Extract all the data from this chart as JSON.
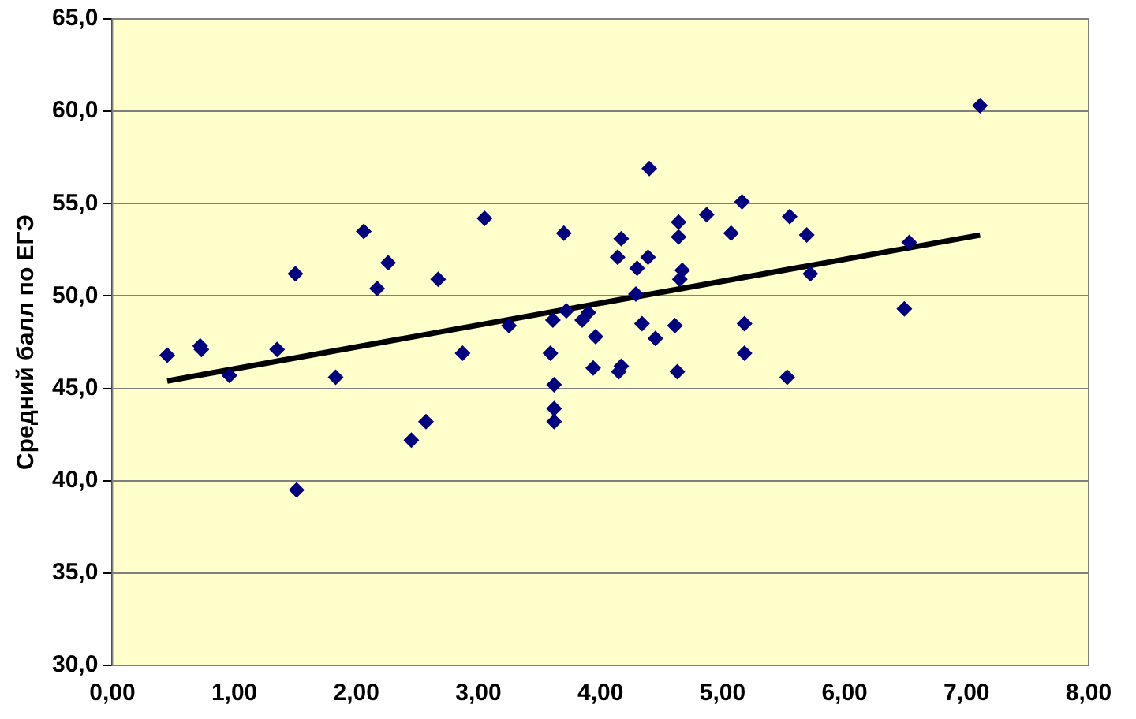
{
  "chart_data": {
    "type": "scatter",
    "ylabel": "Средний балл по ЕГЭ",
    "marker": "diamond",
    "grid": "y",
    "xlim": [
      0,
      8
    ],
    "xticks": [
      {
        "value": 0,
        "label": "0,00"
      },
      {
        "value": 1,
        "label": "1,00"
      },
      {
        "value": 2,
        "label": "2,00"
      },
      {
        "value": 3,
        "label": "3,00"
      },
      {
        "value": 4,
        "label": "4,00"
      },
      {
        "value": 5,
        "label": "5,00"
      },
      {
        "value": 6,
        "label": "6,00"
      },
      {
        "value": 7,
        "label": "7,00"
      },
      {
        "value": 8,
        "label": "8,00"
      }
    ],
    "ylim": [
      30,
      65
    ],
    "yticks": [
      {
        "value": 30,
        "label": "30,0"
      },
      {
        "value": 35,
        "label": "35,0"
      },
      {
        "value": 40,
        "label": "40,0"
      },
      {
        "value": 45,
        "label": "45,0"
      },
      {
        "value": 50,
        "label": "50,0"
      },
      {
        "value": 55,
        "label": "55,0"
      },
      {
        "value": 60,
        "label": "60,0"
      },
      {
        "value": 65,
        "label": "65,0"
      }
    ],
    "series": [
      {
        "color": "#000080",
        "x": [
          0.45,
          0.72,
          0.73,
          0.96,
          1.35,
          1.5,
          1.51,
          1.83,
          2.06,
          2.17,
          2.26,
          2.45,
          2.57,
          2.67,
          2.87,
          3.05,
          3.25,
          3.59,
          3.61,
          3.62,
          3.62,
          3.62,
          3.7,
          3.72,
          3.85,
          3.9,
          3.96,
          3.94,
          4.4,
          5.16,
          4.87,
          4.64,
          4.64,
          5.07,
          5.55,
          5.69,
          6.53,
          4.17,
          4.14,
          4.39,
          4.3,
          4.67,
          4.65,
          4.29,
          5.72,
          6.49,
          4.34,
          4.61,
          5.18,
          4.45,
          5.18,
          4.17,
          4.15,
          4.63,
          5.53,
          7.11
        ],
        "values": [
          46.8,
          47.3,
          47.1,
          45.7,
          47.1,
          51.2,
          39.5,
          45.6,
          53.5,
          50.4,
          51.8,
          42.2,
          43.2,
          50.9,
          46.9,
          54.2,
          48.4,
          46.9,
          48.7,
          45.2,
          43.9,
          43.2,
          53.4,
          49.2,
          48.7,
          49.1,
          47.8,
          46.1,
          56.9,
          55.1,
          54.4,
          54.0,
          53.2,
          53.4,
          54.3,
          53.3,
          52.9,
          53.1,
          52.1,
          52.1,
          51.5,
          51.4,
          50.9,
          50.1,
          51.2,
          49.3,
          48.5,
          48.4,
          48.5,
          47.7,
          46.9,
          46.2,
          45.9,
          45.9,
          45.6,
          60.3
        ]
      },
      {
        "type": "line",
        "marker": "none",
        "color": "#000000",
        "x": [
          0.45,
          7.11
        ],
        "values": [
          45.4,
          53.3
        ]
      }
    ]
  }
}
